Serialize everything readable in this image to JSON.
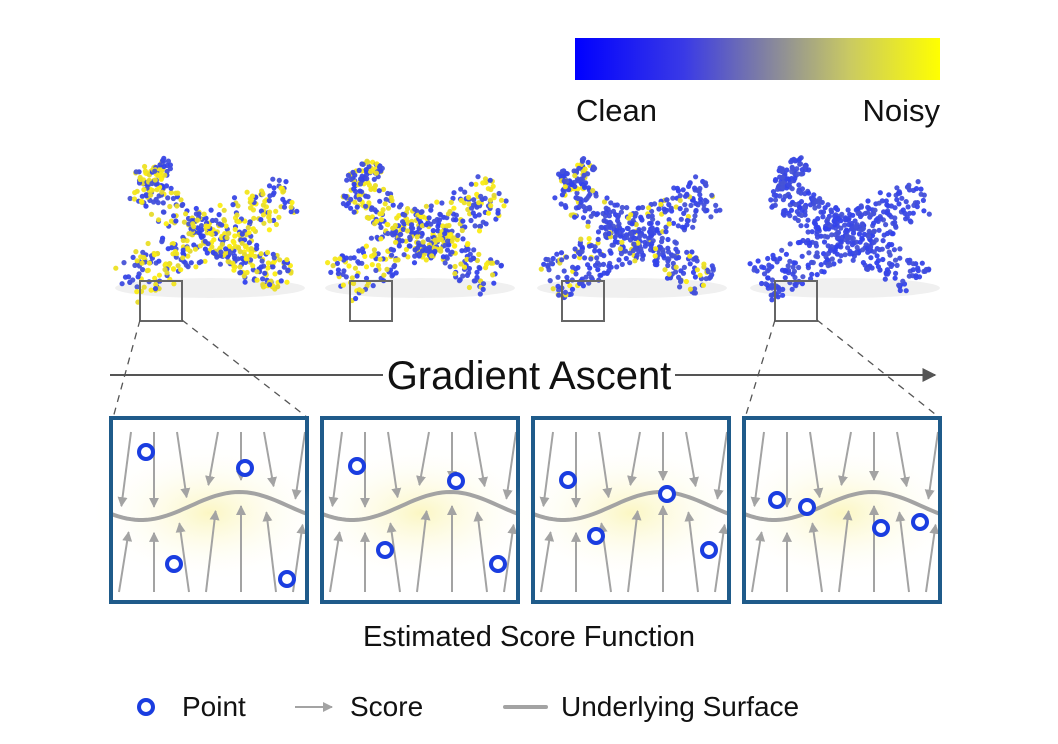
{
  "colorbar": {
    "left_label": "Clean",
    "right_label": "Noisy",
    "start_color": "#0000ff",
    "end_color": "#ffff00"
  },
  "arrow_label": "Gradient Ascent",
  "caption": "Estimated Score Function",
  "legend": {
    "point": "Point",
    "score": "Score",
    "surface": "Underlying Surface"
  },
  "colors": {
    "frame": "#1f5b8a",
    "point": "#1a3de0",
    "arrow": "#a3a3a3",
    "surface": "#a3a3a3",
    "glow": "#fbf7c9"
  },
  "stages": [
    {
      "noise_level": 0.75
    },
    {
      "noise_level": 0.5
    },
    {
      "noise_level": 0.25
    },
    {
      "noise_level": 0.0
    }
  ]
}
